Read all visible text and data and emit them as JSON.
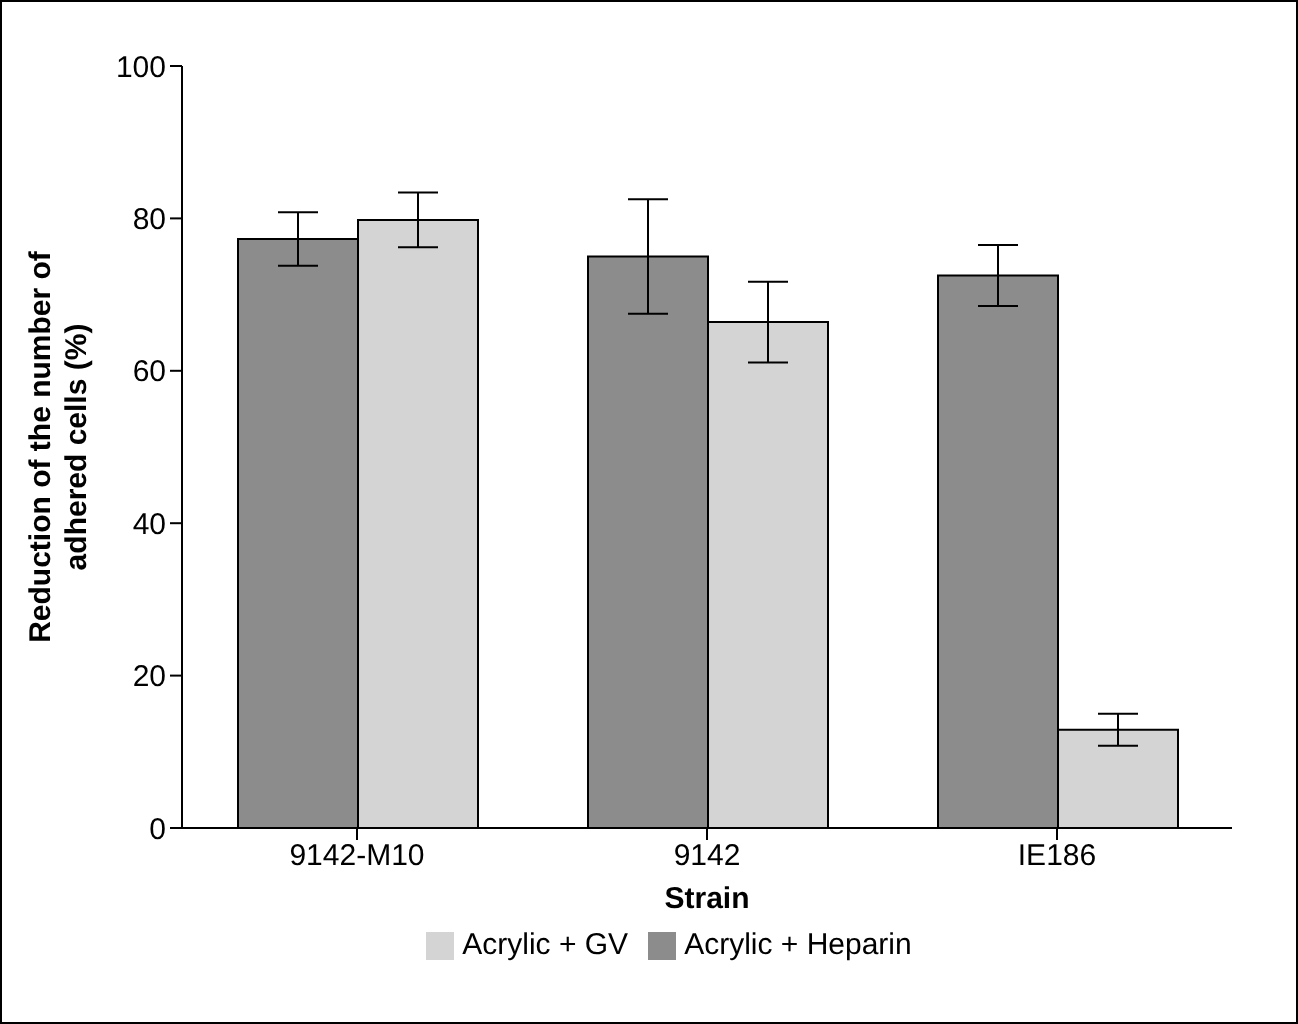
{
  "chart_data": {
    "type": "bar",
    "xlabel": "Strain",
    "ylabel": "Reduction of the number of adhered cells (%)",
    "categories": [
      "9142-M10",
      "9142",
      "IE186"
    ],
    "series": [
      {
        "name": "Acrylic + Heparin",
        "color": "#8c8c8c",
        "values": [
          77.3,
          75,
          72.5
        ],
        "errors": [
          3.5,
          7.5,
          4
        ]
      },
      {
        "name": "Acrylic + GV",
        "color": "#d4d4d4",
        "values": [
          79.8,
          66.4,
          12.9
        ],
        "errors": [
          3.6,
          5.3,
          2.1
        ]
      }
    ],
    "ylim": [
      0,
      100
    ],
    "yticks": [
      0,
      20,
      40,
      60,
      80,
      100
    ],
    "grid": false,
    "legend": "bottom"
  }
}
